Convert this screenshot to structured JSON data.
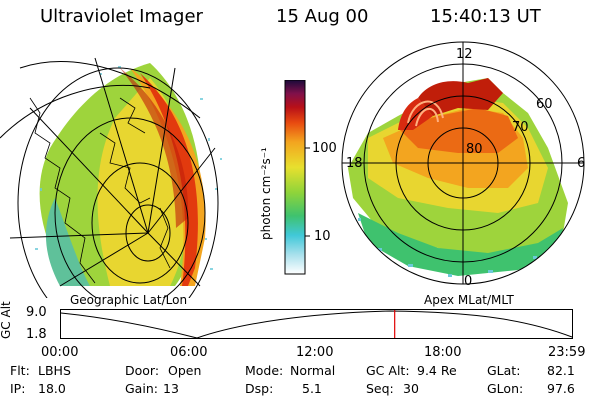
{
  "header": {
    "instrument": "Ultraviolet Imager",
    "date": "15 Aug 00",
    "time": "15:40:13 UT"
  },
  "left_panel": {
    "caption": "Geographic Lat/Lon"
  },
  "right_panel": {
    "caption": "Apex MLat/MLT",
    "mlt_labels": {
      "top": "12",
      "left": "18",
      "right": "6",
      "bottom": "0"
    },
    "lat_labels": [
      "80",
      "70",
      "60"
    ]
  },
  "colorbar": {
    "unit_label": "photon cm⁻²s⁻¹",
    "ticks": [
      "100",
      "10"
    ]
  },
  "orbit_plot": {
    "ylabel": "GC Alt",
    "y_ticks": [
      "9.0",
      "1.8"
    ],
    "x_ticks": [
      "00:00",
      "06:00",
      "12:00",
      "18:00",
      "23:59"
    ],
    "current_time_fraction": 0.653,
    "marker_color": "#e00000"
  },
  "info": {
    "filter": {
      "label": "Flt:",
      "value": "LBHS"
    },
    "ip": {
      "label": "IP:",
      "value": "18.0"
    },
    "door": {
      "label": "Door:",
      "value": "Open"
    },
    "gain": {
      "label": "Gain:",
      "value": "13"
    },
    "mode": {
      "label": "Mode:",
      "value": "Normal"
    },
    "dsp": {
      "label": "Dsp:",
      "value": "5.1"
    },
    "gc_alt": {
      "label": "GC Alt:",
      "value": "9.4 Re"
    },
    "seq": {
      "label": "Seq:",
      "value": "30"
    },
    "glat": {
      "label": "GLat:",
      "value": "82.1"
    },
    "glon": {
      "label": "GLon:",
      "value": "97.6"
    }
  }
}
